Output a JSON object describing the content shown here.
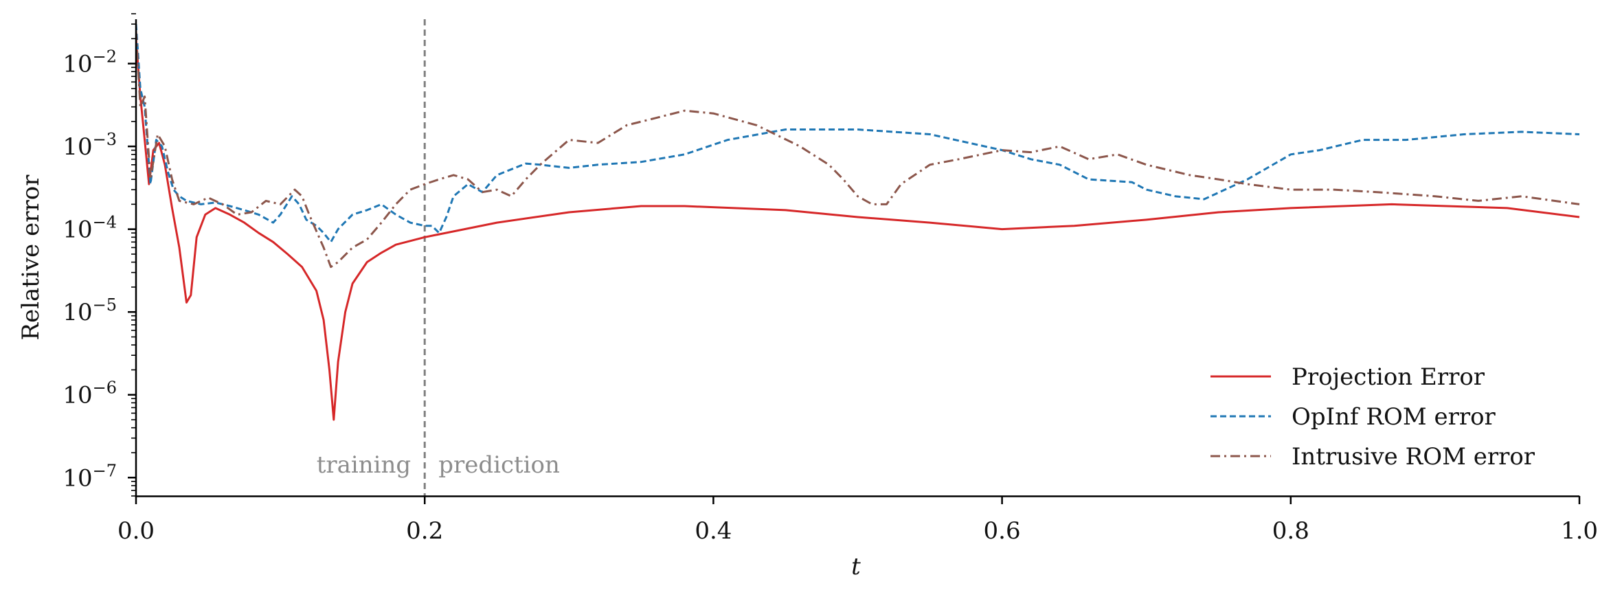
{
  "chart_data": {
    "type": "line",
    "title": "",
    "xlabel": "t",
    "ylabel": "Relative error",
    "xlim": [
      0.0,
      1.0
    ],
    "ylim": [
      6e-08,
      0.04
    ],
    "yscale": "log",
    "grid": false,
    "legend_position": "bottom-right",
    "x_ticks": [
      0.0,
      0.2,
      0.4,
      0.6,
      0.8,
      1.0
    ],
    "x_tick_labels": [
      "0.0",
      "0.2",
      "0.4",
      "0.6",
      "0.8",
      "1.0"
    ],
    "y_ticks": [
      1e-07,
      1e-06,
      1e-05,
      0.0001,
      0.001,
      0.01
    ],
    "y_tick_labels": [
      {
        "base": "10",
        "exp": "−7"
      },
      {
        "base": "10",
        "exp": "−6"
      },
      {
        "base": "10",
        "exp": "−5"
      },
      {
        "base": "10",
        "exp": "−4"
      },
      {
        "base": "10",
        "exp": "−3"
      },
      {
        "base": "10",
        "exp": "−2"
      }
    ],
    "divider": {
      "x": 0.2,
      "color": "#808080",
      "left_label": "training",
      "right_label": "prediction"
    },
    "series": [
      {
        "name": "Projection Error",
        "color": "#d62728",
        "style": "solid",
        "x": [
          0.0,
          0.003,
          0.006,
          0.009,
          0.012,
          0.016,
          0.02,
          0.025,
          0.03,
          0.035,
          0.038,
          0.042,
          0.048,
          0.055,
          0.065,
          0.075,
          0.085,
          0.095,
          0.105,
          0.115,
          0.125,
          0.13,
          0.134,
          0.137,
          0.14,
          0.145,
          0.15,
          0.16,
          0.17,
          0.18,
          0.2,
          0.25,
          0.3,
          0.35,
          0.38,
          0.45,
          0.5,
          0.55,
          0.6,
          0.65,
          0.7,
          0.75,
          0.8,
          0.87,
          0.95,
          1.0
        ],
        "y": [
          0.02,
          0.004,
          0.0012,
          0.00035,
          0.0009,
          0.0011,
          0.0006,
          0.00018,
          6e-05,
          1.3e-05,
          1.6e-05,
          8e-05,
          0.00015,
          0.00018,
          0.00015,
          0.00012,
          9e-05,
          7e-05,
          5e-05,
          3.5e-05,
          1.8e-05,
          8e-06,
          2e-06,
          5e-07,
          2.5e-06,
          1e-05,
          2.2e-05,
          4e-05,
          5.2e-05,
          6.5e-05,
          8e-05,
          0.00012,
          0.00016,
          0.00019,
          0.00019,
          0.00017,
          0.00014,
          0.00012,
          0.0001,
          0.00011,
          0.00013,
          0.00016,
          0.00018,
          0.0002,
          0.00018,
          0.00014
        ]
      },
      {
        "name": "OpInf ROM error",
        "color": "#1f77b4",
        "style": "dashed",
        "x": [
          0.0,
          0.003,
          0.006,
          0.01,
          0.014,
          0.018,
          0.022,
          0.026,
          0.03,
          0.035,
          0.045,
          0.055,
          0.065,
          0.075,
          0.085,
          0.095,
          0.1,
          0.108,
          0.113,
          0.118,
          0.125,
          0.13,
          0.135,
          0.14,
          0.15,
          0.16,
          0.17,
          0.18,
          0.19,
          0.2,
          0.205,
          0.21,
          0.215,
          0.22,
          0.23,
          0.24,
          0.25,
          0.27,
          0.28,
          0.3,
          0.32,
          0.35,
          0.38,
          0.41,
          0.45,
          0.5,
          0.55,
          0.6,
          0.62,
          0.64,
          0.66,
          0.68,
          0.69,
          0.7,
          0.72,
          0.74,
          0.77,
          0.8,
          0.82,
          0.85,
          0.88,
          0.92,
          0.96,
          1.0
        ],
        "y": [
          0.03,
          0.005,
          0.003,
          0.00035,
          0.0012,
          0.001,
          0.0005,
          0.0003,
          0.00025,
          0.00022,
          0.0002,
          0.00021,
          0.00019,
          0.00017,
          0.00015,
          0.00012,
          0.00015,
          0.00025,
          0.0002,
          0.00013,
          0.00011,
          9e-05,
          7e-05,
          0.0001,
          0.00015,
          0.00017,
          0.0002,
          0.00015,
          0.00012,
          0.00011,
          0.00011,
          9e-05,
          0.00014,
          0.00025,
          0.00035,
          0.00028,
          0.00045,
          0.00062,
          0.0006,
          0.00055,
          0.0006,
          0.00065,
          0.0008,
          0.0012,
          0.0016,
          0.0016,
          0.0014,
          0.0009,
          0.0007,
          0.0006,
          0.0004,
          0.00038,
          0.00037,
          0.0003,
          0.00025,
          0.00023,
          0.0004,
          0.0008,
          0.0009,
          0.0012,
          0.0012,
          0.0014,
          0.0015,
          0.0014
        ]
      },
      {
        "name": "Intrusive ROM error",
        "color": "#8c564b",
        "style": "dashdot",
        "x": [
          0.0,
          0.003,
          0.006,
          0.01,
          0.015,
          0.02,
          0.025,
          0.03,
          0.04,
          0.05,
          0.06,
          0.07,
          0.08,
          0.09,
          0.1,
          0.11,
          0.115,
          0.12,
          0.13,
          0.135,
          0.14,
          0.15,
          0.16,
          0.17,
          0.18,
          0.19,
          0.2,
          0.21,
          0.22,
          0.23,
          0.24,
          0.25,
          0.26,
          0.27,
          0.28,
          0.3,
          0.32,
          0.34,
          0.36,
          0.38,
          0.4,
          0.43,
          0.46,
          0.48,
          0.49,
          0.5,
          0.51,
          0.52,
          0.53,
          0.55,
          0.57,
          0.6,
          0.62,
          0.64,
          0.66,
          0.68,
          0.7,
          0.73,
          0.75,
          0.77,
          0.8,
          0.83,
          0.86,
          0.9,
          0.93,
          0.96,
          1.0
        ],
        "y": [
          0.025,
          0.003,
          0.004,
          0.0004,
          0.0014,
          0.001,
          0.0004,
          0.00022,
          0.0002,
          0.00024,
          0.0002,
          0.00015,
          0.00016,
          0.00022,
          0.0002,
          0.0003,
          0.00025,
          0.00015,
          6e-05,
          3.5e-05,
          4e-05,
          6e-05,
          7.5e-05,
          0.00012,
          0.0002,
          0.0003,
          0.00035,
          0.0004,
          0.00045,
          0.0004,
          0.00028,
          0.0003,
          0.00025,
          0.0004,
          0.0006,
          0.0012,
          0.0011,
          0.0018,
          0.0022,
          0.0027,
          0.0025,
          0.0018,
          0.001,
          0.0006,
          0.0004,
          0.00025,
          0.0002,
          0.0002,
          0.00035,
          0.0006,
          0.0007,
          0.0009,
          0.00085,
          0.001,
          0.0007,
          0.0008,
          0.0006,
          0.00045,
          0.0004,
          0.00035,
          0.0003,
          0.0003,
          0.00028,
          0.00025,
          0.00022,
          0.00025,
          0.0002
        ]
      }
    ]
  }
}
